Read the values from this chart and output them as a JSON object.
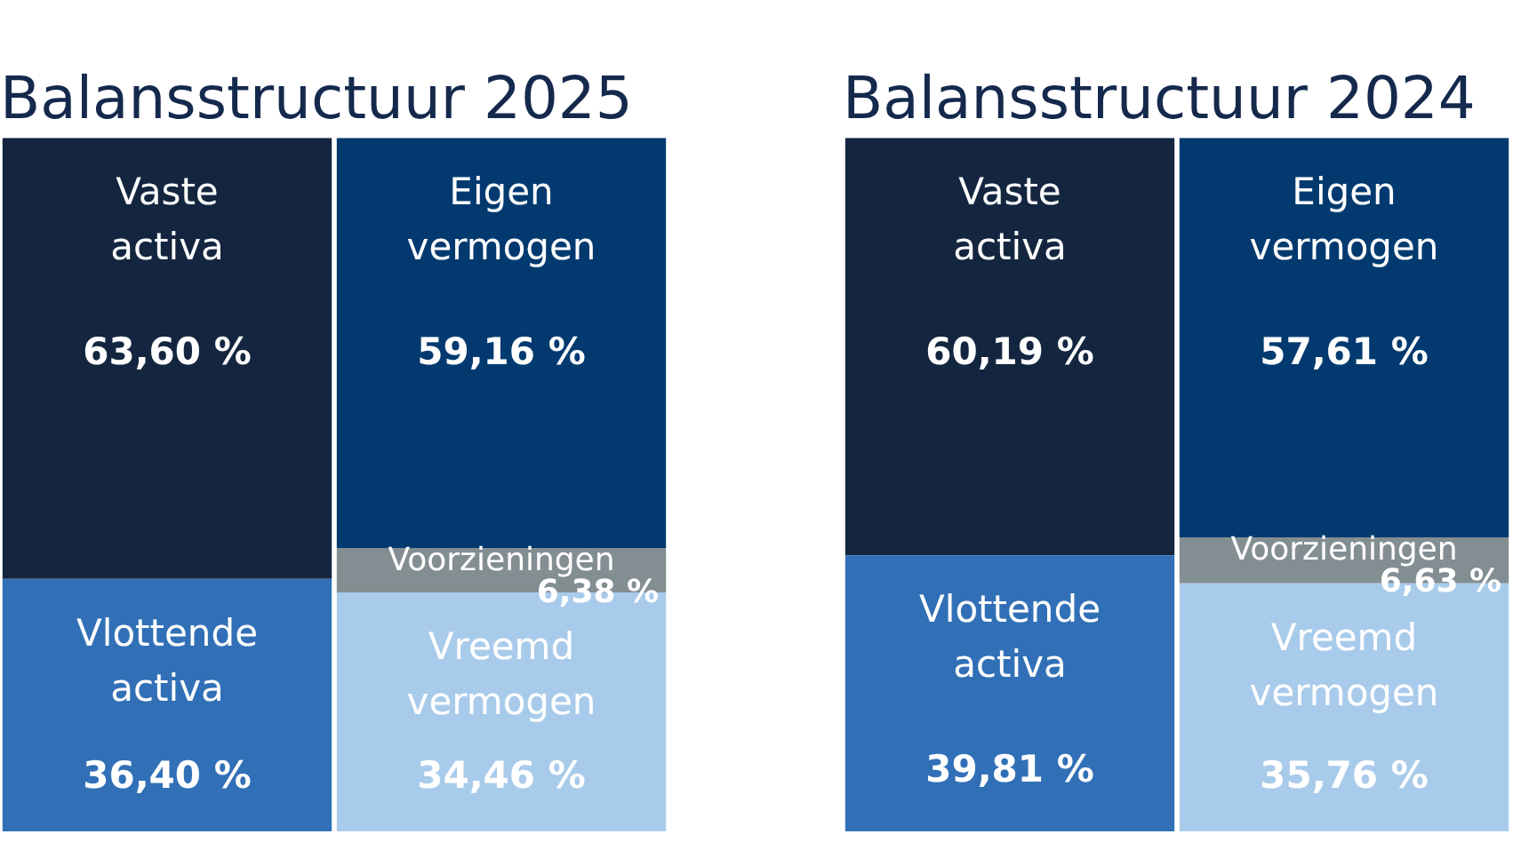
{
  "chart_data": [
    {
      "type": "bar",
      "title": "Balansstructuur 2025",
      "stacked": true,
      "categories": [
        null,
        null
      ],
      "series": [
        {
          "name": "Vlottende activa",
          "color": "#3170b7",
          "values": [
            36.4,
            null
          ],
          "value_labels": [
            "36,40 %",
            null
          ]
        },
        {
          "name": "Vaste activa",
          "color": "#14263f",
          "values": [
            63.6,
            null
          ],
          "value_labels": [
            "63,60 %",
            null
          ]
        },
        {
          "name": "Vreemd vermogen",
          "color": "#a9cbeb",
          "values": [
            null,
            34.46
          ],
          "value_labels": [
            null,
            "34,46 %"
          ]
        },
        {
          "name": "Voorzieningen",
          "color": "#838e93",
          "values": [
            null,
            6.38
          ],
          "value_labels": [
            null,
            "6,38 %"
          ]
        },
        {
          "name": "Eigen vermogen",
          "color": "#023a70",
          "values": [
            null,
            59.16
          ],
          "value_labels": [
            null,
            "59,16 %"
          ]
        }
      ]
    },
    {
      "type": "bar",
      "title": "Balansstructuur 2024",
      "stacked": true,
      "categories": [
        null,
        null
      ],
      "series": [
        {
          "name": "Vlottende activa",
          "color": "#3170b7",
          "values": [
            39.81,
            null
          ],
          "value_labels": [
            "39,81 %",
            null
          ]
        },
        {
          "name": "Vaste activa",
          "color": "#14263f",
          "values": [
            60.19,
            null
          ],
          "value_labels": [
            "60,19 %",
            null
          ]
        },
        {
          "name": "Vreemd vermogen",
          "color": "#a9cbeb",
          "values": [
            null,
            35.76
          ],
          "value_labels": [
            null,
            "35,76 %"
          ]
        },
        {
          "name": "Voorzieningen",
          "color": "#838e93",
          "values": [
            null,
            6.63
          ],
          "value_labels": [
            null,
            "6,63 %"
          ]
        },
        {
          "name": "Eigen vermogen",
          "color": "#023a70",
          "values": [
            null,
            57.61
          ],
          "value_labels": [
            null,
            "57,61 %"
          ]
        }
      ]
    }
  ]
}
